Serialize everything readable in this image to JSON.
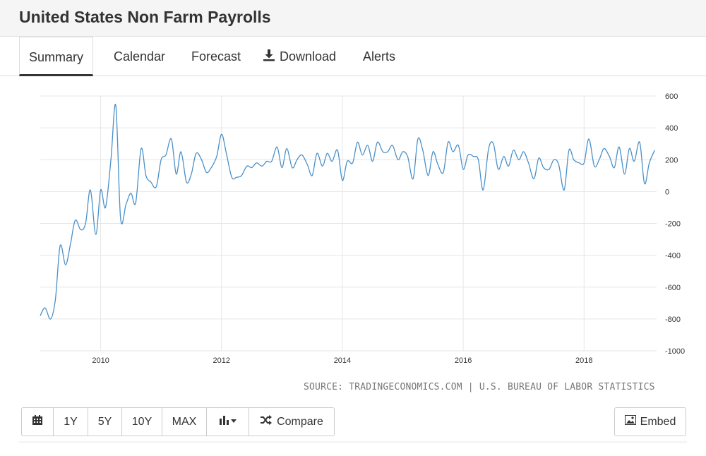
{
  "header": {
    "title": "United States Non Farm Payrolls"
  },
  "tabs": [
    {
      "label": "Summary"
    },
    {
      "label": "Calendar"
    },
    {
      "label": "Forecast"
    },
    {
      "label": "Download"
    },
    {
      "label": "Alerts"
    }
  ],
  "source": "SOURCE: TRADINGECONOMICS.COM | U.S. BUREAU OF LABOR STATISTICS",
  "toolbar": {
    "calendar_icon": "calendar-icon",
    "ranges": [
      "1Y",
      "5Y",
      "10Y",
      "MAX"
    ],
    "chart_type_icon": "bar-chart-icon",
    "compare_label": "Compare",
    "embed_label": "Embed"
  },
  "colors": {
    "line": "#4a90c8",
    "grid": "#e6e6e6",
    "text": "#333333"
  },
  "chart_data": {
    "type": "line",
    "title": "",
    "xlabel": "",
    "ylabel": "",
    "xlim": [
      2009.0,
      2019.2
    ],
    "ylim": [
      -1000,
      600
    ],
    "x_ticks": [
      2010,
      2012,
      2014,
      2016,
      2018
    ],
    "x_tick_labels": [
      "2010",
      "2012",
      "2014",
      "2016",
      "2018"
    ],
    "y_ticks": [
      600,
      400,
      200,
      0,
      -200,
      -400,
      -600,
      -800,
      -1000
    ],
    "y_tick_labels": [
      "600",
      "400",
      "200",
      "0",
      "-200",
      "-400",
      "-600",
      "-800",
      "-1000"
    ],
    "y_axis_side": "right",
    "grid": true,
    "series": [
      {
        "x": [
          2009.0,
          2009.08,
          2009.17,
          2009.25,
          2009.33,
          2009.42,
          2009.5,
          2009.58,
          2009.67,
          2009.75,
          2009.83,
          2009.92,
          2010.0,
          2010.08,
          2010.17,
          2010.25,
          2010.33,
          2010.42,
          2010.5,
          2010.58,
          2010.67,
          2010.75,
          2010.83,
          2010.92,
          2011.0,
          2011.08,
          2011.17,
          2011.25,
          2011.33,
          2011.42,
          2011.5,
          2011.58,
          2011.67,
          2011.75,
          2011.83,
          2011.92,
          2012.0,
          2012.08,
          2012.17,
          2012.25,
          2012.33,
          2012.42,
          2012.5,
          2012.58,
          2012.67,
          2012.75,
          2012.83,
          2012.92,
          2013.0,
          2013.08,
          2013.17,
          2013.25,
          2013.33,
          2013.42,
          2013.5,
          2013.58,
          2013.67,
          2013.75,
          2013.83,
          2013.92,
          2014.0,
          2014.08,
          2014.17,
          2014.25,
          2014.33,
          2014.42,
          2014.5,
          2014.58,
          2014.67,
          2014.75,
          2014.83,
          2014.92,
          2015.0,
          2015.08,
          2015.17,
          2015.25,
          2015.33,
          2015.42,
          2015.5,
          2015.58,
          2015.67,
          2015.75,
          2015.83,
          2015.92,
          2016.0,
          2016.08,
          2016.17,
          2016.25,
          2016.33,
          2016.42,
          2016.5,
          2016.58,
          2016.67,
          2016.75,
          2016.83,
          2016.92,
          2017.0,
          2017.08,
          2017.17,
          2017.25,
          2017.33,
          2017.42,
          2017.5,
          2017.58,
          2017.67,
          2017.75,
          2017.83,
          2017.92,
          2018.0,
          2018.08,
          2018.17,
          2018.25,
          2018.33,
          2018.42,
          2018.5,
          2018.58,
          2018.67,
          2018.75,
          2018.83,
          2018.92,
          2019.0,
          2019.08,
          2019.17
        ],
        "values": [
          -780,
          -730,
          -800,
          -680,
          -340,
          -460,
          -330,
          -180,
          -240,
          -200,
          10,
          -270,
          10,
          -100,
          200,
          540,
          -170,
          -80,
          -10,
          -70,
          270,
          100,
          60,
          30,
          200,
          230,
          330,
          110,
          250,
          60,
          110,
          240,
          200,
          120,
          150,
          220,
          360,
          240,
          90,
          90,
          100,
          160,
          150,
          180,
          160,
          190,
          190,
          280,
          150,
          270,
          150,
          200,
          230,
          170,
          100,
          240,
          160,
          240,
          190,
          260,
          70,
          190,
          180,
          310,
          230,
          290,
          190,
          310,
          250,
          250,
          290,
          200,
          250,
          220,
          80,
          330,
          260,
          100,
          250,
          170,
          120,
          310,
          250,
          290,
          140,
          230,
          220,
          200,
          10,
          270,
          300,
          140,
          220,
          160,
          260,
          200,
          250,
          180,
          80,
          210,
          150,
          140,
          200,
          170,
          10,
          260,
          200,
          180,
          180,
          330,
          160,
          200,
          270,
          220,
          150,
          280,
          110,
          270,
          190,
          310,
          50,
          180,
          260
        ]
      }
    ]
  }
}
